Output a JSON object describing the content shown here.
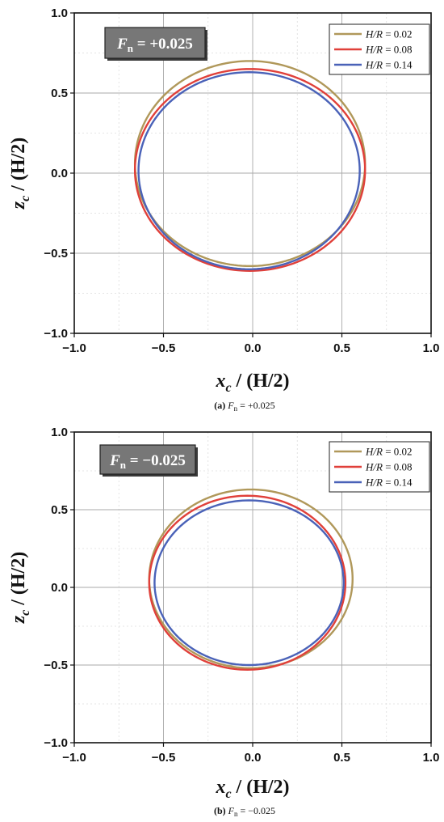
{
  "chart_data": [
    {
      "type": "line",
      "annotation": {
        "symbol": "F",
        "subscript": "n",
        "value": " = +0.025"
      },
      "caption": {
        "label": "(a)",
        "symbol": "F",
        "subscript": "n",
        "value": " = +0.025"
      },
      "xlabel": {
        "main": "x",
        "sub": "c",
        "rest": " / (H/2)"
      },
      "ylabel": {
        "main": "z",
        "sub": "c",
        "rest": " / (H/2)"
      },
      "xlim": [
        -1.0,
        1.0
      ],
      "ylim": [
        -1.0,
        1.0
      ],
      "xticks": [
        -1.0,
        -0.5,
        0.0,
        0.5,
        1.0
      ],
      "yticks": [
        -1.0,
        -0.5,
        0.0,
        0.5,
        1.0
      ],
      "xtick_labels": [
        "−1.0",
        "−0.5",
        "0.0",
        "0.5",
        "1.0"
      ],
      "ytick_labels": [
        "−1.0",
        "−0.5",
        "0.0",
        "0.5",
        "1.0"
      ],
      "grid": true,
      "legend_position": "top-right",
      "series": [
        {
          "name_italic": "H/R",
          "name_value": " = 0.02",
          "color": "#b0985a",
          "x_min": -0.66,
          "x_max": 0.63,
          "z_min": -0.58,
          "z_max": 0.7,
          "x_center_top": 0.0
        },
        {
          "name_italic": "H/R",
          "name_value": " = 0.08",
          "color": "#e0403a",
          "x_min": -0.66,
          "x_max": 0.63,
          "z_min": -0.61,
          "z_max": 0.65,
          "x_center_top": 0.0
        },
        {
          "name_italic": "H/R",
          "name_value": " = 0.14",
          "color": "#4a62b8",
          "x_min": -0.64,
          "x_max": 0.6,
          "z_min": -0.6,
          "z_max": 0.63,
          "x_center_top": 0.0
        }
      ]
    },
    {
      "type": "line",
      "annotation": {
        "symbol": "F",
        "subscript": "n",
        "value": " = −0.025"
      },
      "caption": {
        "label": "(b)",
        "symbol": "F",
        "subscript": "n",
        "value": " = −0.025"
      },
      "xlabel": {
        "main": "x",
        "sub": "c",
        "rest": " / (H/2)"
      },
      "ylabel": {
        "main": "z",
        "sub": "c",
        "rest": " / (H/2)"
      },
      "xlim": [
        -1.0,
        1.0
      ],
      "ylim": [
        -1.0,
        1.0
      ],
      "xticks": [
        -1.0,
        -0.5,
        0.0,
        0.5,
        1.0
      ],
      "yticks": [
        -1.0,
        -0.5,
        0.0,
        0.5,
        1.0
      ],
      "xtick_labels": [
        "−1.0",
        "−0.5",
        "0.0",
        "0.5",
        "1.0"
      ],
      "ytick_labels": [
        "−1.0",
        "−0.5",
        "0.0",
        "0.5",
        "1.0"
      ],
      "grid": true,
      "legend_position": "top-right",
      "series": [
        {
          "name_italic": "H/R",
          "name_value": " = 0.02",
          "color": "#b0985a",
          "x_min": -0.58,
          "x_max": 0.56,
          "z_min": -0.52,
          "z_max": 0.63,
          "x_center_top": 0.0
        },
        {
          "name_italic": "H/R",
          "name_value": " = 0.08",
          "color": "#e0403a",
          "x_min": -0.58,
          "x_max": 0.52,
          "z_min": -0.53,
          "z_max": 0.59,
          "x_center_top": 0.0
        },
        {
          "name_italic": "H/R",
          "name_value": " = 0.14",
          "color": "#4a62b8",
          "x_min": -0.55,
          "x_max": 0.51,
          "z_min": -0.5,
          "z_max": 0.56,
          "x_center_top": 0.0
        }
      ]
    }
  ]
}
